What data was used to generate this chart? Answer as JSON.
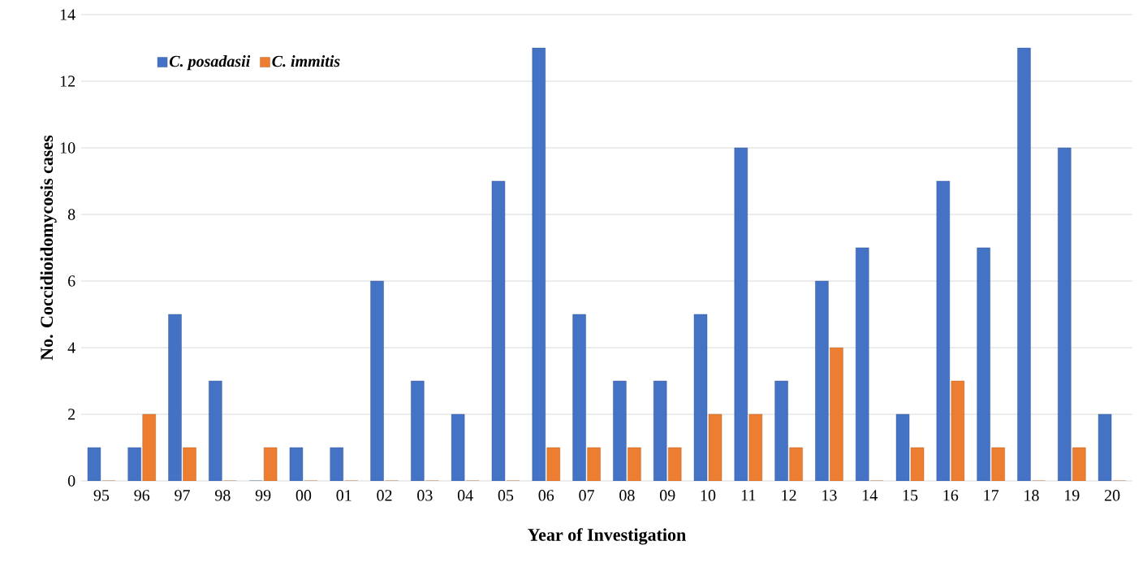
{
  "chart_data": {
    "type": "bar",
    "xlabel": "Year of Investigation",
    "ylabel": "No. Coccidioidomycosis cases",
    "categories": [
      "95",
      "96",
      "97",
      "98",
      "99",
      "00",
      "01",
      "02",
      "03",
      "04",
      "05",
      "06",
      "07",
      "08",
      "09",
      "10",
      "11",
      "12",
      "13",
      "14",
      "15",
      "16",
      "17",
      "18",
      "19",
      "20"
    ],
    "series": [
      {
        "name": "C. posadasii",
        "color": "#4472c4",
        "values": [
          1,
          1,
          5,
          3,
          0,
          1,
          1,
          6,
          3,
          2,
          9,
          13,
          5,
          3,
          3,
          5,
          10,
          3,
          6,
          7,
          2,
          9,
          7,
          13,
          10,
          2
        ]
      },
      {
        "name": "C. immitis",
        "color": "#ed7d31",
        "values": [
          0,
          2,
          1,
          0,
          1,
          0,
          0,
          0,
          0,
          0,
          0,
          1,
          1,
          1,
          1,
          2,
          2,
          1,
          4,
          0,
          1,
          3,
          1,
          0,
          1,
          0
        ]
      }
    ],
    "ylim": [
      0,
      14
    ],
    "yticks": [
      0,
      2,
      4,
      6,
      8,
      10,
      12,
      14
    ],
    "grid": "y",
    "legend": "top left"
  }
}
